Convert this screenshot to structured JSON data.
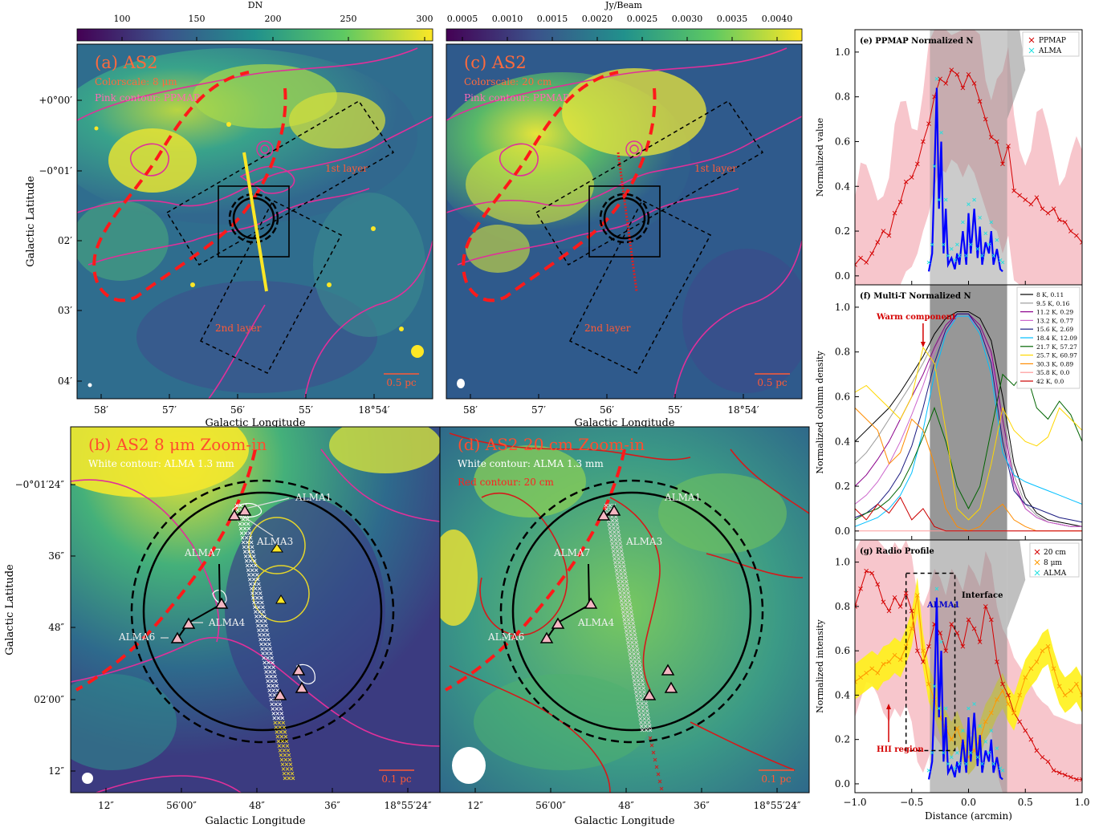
{
  "panels_left": {
    "a": {
      "title": "(a) AS2",
      "line1": "Colorscale: 8 μm",
      "line2": "Pink contour: PPMAP",
      "layer1": "1st layer",
      "layer2": "2nd layer",
      "scalebar": "0.5 pc"
    },
    "c": {
      "title": "(c) AS2",
      "line1": "Colorscale: 20 cm",
      "line2": "Pink contour: PPMAP",
      "layer1": "1st layer",
      "layer2": "2nd layer",
      "scalebar": "0.5 pc"
    },
    "b": {
      "title": "(b) AS2 8 μm Zoom-in",
      "line1": "White contour: ALMA 1.3 mm",
      "scalebar": "0.1 pc"
    },
    "d": {
      "title": "(d) AS2 20 cm Zoom-in",
      "line1": "White contour: ALMA 1.3 mm",
      "line2": "Red contour: 20 cm",
      "scalebar": "0.1 pc"
    }
  },
  "colorbars": {
    "a": {
      "label": "DN",
      "ticks": [
        "100",
        "150",
        "200",
        "250",
        "300"
      ]
    },
    "c": {
      "label": "Jy/Beam",
      "ticks": [
        "0.0005",
        "0.0010",
        "0.0015",
        "0.0020",
        "0.0025",
        "0.0030",
        "0.0035",
        "0.0040"
      ]
    }
  },
  "axes_top": {
    "xlabel": "Galactic Longitude",
    "ylabel": "Galactic Latitude",
    "xticks": [
      "58′",
      "57′",
      "56′",
      "55′",
      "18°54′"
    ],
    "yticks": [
      "+0°00′",
      "−0°01′",
      "02′",
      "03′",
      "04′"
    ]
  },
  "axes_bottom": {
    "xlabel": "Galactic Longitude",
    "ylabel": "Galactic Latitude",
    "xticks": [
      "12″",
      "56′00″",
      "48″",
      "36″",
      "18°55′24″"
    ],
    "yticks": [
      "−0°01′24″",
      "36″",
      "48″",
      "02′00″",
      "12″"
    ]
  },
  "source_labels": [
    "ALMA1",
    "ALMA3",
    "ALMA7",
    "ALMA4",
    "ALMA6"
  ],
  "chart_data": [
    {
      "type": "line",
      "panel": "e",
      "title": "(e) PPMAP Normalized N_H2",
      "ylabel": "Normalized value",
      "xlim": [
        -1.0,
        1.0
      ],
      "ylim": [
        0.0,
        1.0
      ],
      "yticks": [
        "0.0",
        "0.2",
        "0.4",
        "0.6",
        "0.8",
        "1.0"
      ],
      "legend": [
        "PPMAP",
        "ALMA"
      ],
      "legend_position": "top-right",
      "series": [
        {
          "name": "PPMAP",
          "color": "#d40000",
          "x": [
            -1.0,
            -0.95,
            -0.9,
            -0.85,
            -0.8,
            -0.75,
            -0.7,
            -0.65,
            -0.6,
            -0.55,
            -0.5,
            -0.45,
            -0.4,
            -0.35,
            -0.3,
            -0.25,
            -0.2,
            -0.15,
            -0.1,
            -0.05,
            0.0,
            0.05,
            0.1,
            0.15,
            0.2,
            0.25,
            0.3,
            0.35,
            0.4,
            0.45,
            0.5,
            0.55,
            0.6,
            0.65,
            0.7,
            0.75,
            0.8,
            0.85,
            0.9,
            0.95,
            1.0
          ],
          "y": [
            0.05,
            0.08,
            0.06,
            0.1,
            0.15,
            0.2,
            0.18,
            0.28,
            0.33,
            0.42,
            0.44,
            0.5,
            0.6,
            0.68,
            0.8,
            0.88,
            0.86,
            0.92,
            0.9,
            0.84,
            0.9,
            0.86,
            0.78,
            0.7,
            0.62,
            0.6,
            0.5,
            0.58,
            0.38,
            0.36,
            0.34,
            0.32,
            0.35,
            0.3,
            0.28,
            0.3,
            0.25,
            0.24,
            0.2,
            0.18,
            0.15
          ]
        },
        {
          "name": "ALMA",
          "color": "#0000ff",
          "x": [
            -0.35,
            -0.32,
            -0.3,
            -0.28,
            -0.26,
            -0.24,
            -0.22,
            -0.2,
            -0.18,
            -0.15,
            -0.12,
            -0.1,
            -0.08,
            -0.05,
            -0.02,
            0.0,
            0.02,
            0.05,
            0.08,
            0.1,
            0.12,
            0.15,
            0.18,
            0.2,
            0.22,
            0.25,
            0.28,
            0.3
          ],
          "y": [
            0.02,
            0.1,
            0.45,
            0.84,
            0.3,
            0.6,
            0.1,
            0.3,
            0.05,
            0.08,
            0.03,
            0.1,
            0.05,
            0.2,
            0.05,
            0.28,
            0.1,
            0.3,
            0.08,
            0.22,
            0.05,
            0.15,
            0.1,
            0.2,
            0.05,
            0.12,
            0.03,
            0.02
          ]
        }
      ]
    },
    {
      "type": "line",
      "panel": "f",
      "title": "(f) Multi-T_dust Normalized N_H2",
      "ylabel": "Normalized column density",
      "xlim": [
        -1.0,
        1.0
      ],
      "ylim": [
        0.0,
        1.0
      ],
      "yticks": [
        "0.0",
        "0.2",
        "0.4",
        "0.6",
        "0.8",
        "1.0"
      ],
      "annotation": "Warm component",
      "legend_position": "top-right",
      "x": [
        -1.0,
        -0.9,
        -0.8,
        -0.7,
        -0.6,
        -0.5,
        -0.4,
        -0.3,
        -0.2,
        -0.1,
        0.0,
        0.1,
        0.2,
        0.3,
        0.4,
        0.5,
        0.6,
        0.7,
        0.8,
        0.9,
        1.0
      ],
      "series": [
        {
          "name": "8 K, 0.11",
          "color": "#000000",
          "values": [
            0.4,
            0.45,
            0.5,
            0.55,
            0.62,
            0.7,
            0.78,
            0.88,
            0.95,
            0.98,
            0.98,
            0.95,
            0.85,
            0.6,
            0.3,
            0.15,
            0.08,
            0.05,
            0.04,
            0.03,
            0.02
          ]
        },
        {
          "name": "9.5 K, 0.16",
          "color": "#9c9c9c",
          "values": [
            0.3,
            0.35,
            0.42,
            0.5,
            0.58,
            0.66,
            0.75,
            0.85,
            0.93,
            0.97,
            0.97,
            0.93,
            0.82,
            0.55,
            0.25,
            0.12,
            0.07,
            0.04,
            0.03,
            0.02,
            0.02
          ]
        },
        {
          "name": "11.2 K, 0.29",
          "color": "#8b008b",
          "values": [
            0.2,
            0.25,
            0.32,
            0.4,
            0.5,
            0.6,
            0.7,
            0.82,
            0.92,
            0.97,
            0.97,
            0.92,
            0.8,
            0.5,
            0.22,
            0.1,
            0.06,
            0.04,
            0.03,
            0.02,
            0.02
          ]
        },
        {
          "name": "13.2 K, 0.77",
          "color": "#cc66cc",
          "values": [
            0.12,
            0.16,
            0.22,
            0.3,
            0.4,
            0.52,
            0.65,
            0.8,
            0.9,
            0.96,
            0.96,
            0.9,
            0.78,
            0.45,
            0.2,
            0.1,
            0.06,
            0.04,
            0.03,
            0.02,
            0.02
          ]
        },
        {
          "name": "15.6 K, 2.69",
          "color": "#1a1a80",
          "values": [
            0.06,
            0.08,
            0.12,
            0.18,
            0.26,
            0.38,
            0.55,
            0.75,
            0.9,
            0.97,
            0.97,
            0.9,
            0.75,
            0.4,
            0.18,
            0.12,
            0.1,
            0.08,
            0.06,
            0.05,
            0.04
          ]
        },
        {
          "name": "18.4 K, 12.09",
          "color": "#00bfff",
          "values": [
            0.02,
            0.04,
            0.06,
            0.1,
            0.16,
            0.26,
            0.45,
            0.7,
            0.88,
            0.96,
            0.96,
            0.88,
            0.7,
            0.35,
            0.25,
            0.22,
            0.2,
            0.18,
            0.16,
            0.14,
            0.12
          ]
        },
        {
          "name": "21.7 K, 57.27",
          "color": "#006400",
          "values": [
            0.05,
            0.08,
            0.1,
            0.14,
            0.2,
            0.3,
            0.42,
            0.55,
            0.4,
            0.2,
            0.1,
            0.2,
            0.45,
            0.7,
            0.65,
            0.72,
            0.55,
            0.5,
            0.58,
            0.52,
            0.4
          ]
        },
        {
          "name": "25.7 K, 60.97",
          "color": "#ffd700",
          "values": [
            0.62,
            0.65,
            0.6,
            0.55,
            0.5,
            0.6,
            0.82,
            0.75,
            0.45,
            0.1,
            0.05,
            0.1,
            0.3,
            0.55,
            0.45,
            0.4,
            0.38,
            0.42,
            0.55,
            0.5,
            0.45
          ]
        },
        {
          "name": "30.3 K, 0.89",
          "color": "#ff8c00",
          "values": [
            0.55,
            0.5,
            0.45,
            0.3,
            0.35,
            0.5,
            0.45,
            0.3,
            0.1,
            0.02,
            0.0,
            0.02,
            0.08,
            0.12,
            0.05,
            0.02,
            0.0,
            0.0,
            0.0,
            0.0,
            0.0
          ]
        },
        {
          "name": "35.8 K, 0.0",
          "color": "#ff9999",
          "values": [
            0.0,
            0.0,
            0.0,
            0.0,
            0.0,
            0.0,
            0.0,
            0.0,
            0.0,
            0.0,
            0.0,
            0.0,
            0.0,
            0.0,
            0.0,
            0.0,
            0.0,
            0.0,
            0.0,
            0.0,
            0.0
          ]
        },
        {
          "name": "42 K, 0.0",
          "color": "#cc0000",
          "values": [
            0.1,
            0.05,
            0.12,
            0.08,
            0.15,
            0.05,
            0.1,
            0.02,
            0.0,
            0.0,
            0.0,
            0.0,
            0.0,
            0.0,
            0.0,
            0.0,
            0.0,
            0.0,
            0.0,
            0.0,
            0.0
          ]
        }
      ]
    },
    {
      "type": "line",
      "panel": "g",
      "title": "(g) Radio Profile",
      "ylabel": "Normalized intensity",
      "xlabel": "Distance (arcmin)",
      "xlim": [
        -1.0,
        1.0
      ],
      "ylim": [
        0.0,
        1.0
      ],
      "xticks": [
        "−1.0",
        "−0.5",
        "0.0",
        "0.5",
        "1.0"
      ],
      "yticks": [
        "0.0",
        "0.2",
        "0.4",
        "0.6",
        "0.8",
        "1.0"
      ],
      "legend": [
        "20 cm",
        "8 μm",
        "ALMA"
      ],
      "legend_position": "top-right",
      "annotations": [
        "ALMA1",
        "Interface",
        "HII region"
      ],
      "series": [
        {
          "name": "20 cm",
          "color": "#d40000",
          "x": [
            -1.0,
            -0.95,
            -0.9,
            -0.85,
            -0.8,
            -0.75,
            -0.7,
            -0.65,
            -0.6,
            -0.55,
            -0.5,
            -0.45,
            -0.4,
            -0.35,
            -0.3,
            -0.25,
            -0.2,
            -0.15,
            -0.1,
            -0.05,
            0.0,
            0.05,
            0.1,
            0.15,
            0.2,
            0.25,
            0.3,
            0.35,
            0.4,
            0.45,
            0.5,
            0.55,
            0.6,
            0.65,
            0.7,
            0.75,
            0.8,
            0.85,
            0.9,
            0.95,
            1.0
          ],
          "y": [
            0.8,
            0.88,
            0.96,
            0.95,
            0.9,
            0.82,
            0.78,
            0.84,
            0.8,
            0.86,
            0.78,
            0.6,
            0.55,
            0.62,
            0.72,
            0.68,
            0.6,
            0.72,
            0.68,
            0.62,
            0.74,
            0.7,
            0.64,
            0.8,
            0.74,
            0.55,
            0.45,
            0.4,
            0.32,
            0.28,
            0.24,
            0.2,
            0.15,
            0.12,
            0.1,
            0.06,
            0.05,
            0.04,
            0.03,
            0.02,
            0.02
          ]
        },
        {
          "name": "8 μm",
          "color": "#ff9900",
          "x": [
            -1.0,
            -0.95,
            -0.9,
            -0.85,
            -0.8,
            -0.75,
            -0.7,
            -0.65,
            -0.6,
            -0.55,
            -0.5,
            -0.45,
            -0.4,
            -0.35,
            -0.3,
            -0.25,
            -0.2,
            -0.15,
            -0.1,
            -0.05,
            0.0,
            0.05,
            0.1,
            0.15,
            0.2,
            0.25,
            0.3,
            0.35,
            0.4,
            0.45,
            0.5,
            0.55,
            0.6,
            0.65,
            0.7,
            0.75,
            0.8,
            0.85,
            0.9,
            0.95,
            1.0
          ],
          "y": [
            0.46,
            0.48,
            0.5,
            0.52,
            0.5,
            0.54,
            0.55,
            0.58,
            0.56,
            0.62,
            0.7,
            0.85,
            0.6,
            0.45,
            0.38,
            0.3,
            0.25,
            0.2,
            0.25,
            0.18,
            0.12,
            0.15,
            0.2,
            0.28,
            0.32,
            0.38,
            0.42,
            0.36,
            0.32,
            0.4,
            0.48,
            0.52,
            0.55,
            0.6,
            0.62,
            0.52,
            0.44,
            0.4,
            0.42,
            0.45,
            0.4
          ]
        },
        {
          "name": "ALMA",
          "color": "#0000ff",
          "x": [
            -0.35,
            -0.32,
            -0.3,
            -0.28,
            -0.26,
            -0.24,
            -0.22,
            -0.2,
            -0.18,
            -0.15,
            -0.12,
            -0.1,
            -0.08,
            -0.05,
            -0.02,
            0.0,
            0.02,
            0.05,
            0.08,
            0.1,
            0.12,
            0.15,
            0.18,
            0.2,
            0.22,
            0.25,
            0.28,
            0.3
          ],
          "y": [
            0.02,
            0.1,
            0.4,
            0.84,
            0.3,
            0.6,
            0.1,
            0.3,
            0.05,
            0.08,
            0.03,
            0.1,
            0.05,
            0.2,
            0.05,
            0.3,
            0.1,
            0.32,
            0.08,
            0.22,
            0.05,
            0.15,
            0.1,
            0.2,
            0.05,
            0.12,
            0.03,
            0.02
          ]
        }
      ]
    }
  ]
}
